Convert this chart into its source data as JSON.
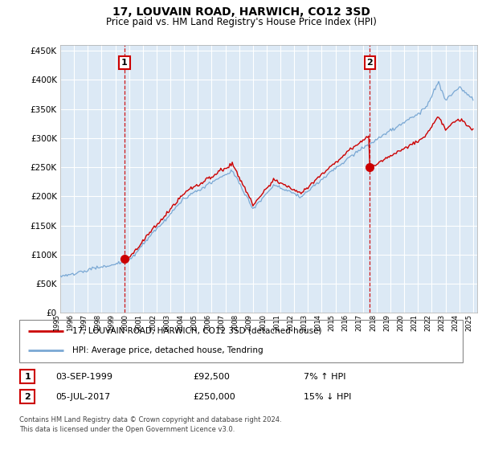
{
  "title": "17, LOUVAIN ROAD, HARWICH, CO12 3SD",
  "subtitle": "Price paid vs. HM Land Registry's House Price Index (HPI)",
  "ylabel_ticks": [
    "£0",
    "£50K",
    "£100K",
    "£150K",
    "£200K",
    "£250K",
    "£300K",
    "£350K",
    "£400K",
    "£450K"
  ],
  "ytick_values": [
    0,
    50000,
    100000,
    150000,
    200000,
    250000,
    300000,
    350000,
    400000,
    450000
  ],
  "ylim": [
    0,
    460000
  ],
  "hpi_color": "#7aa8d4",
  "price_color": "#cc0000",
  "purchase1_year": 1999.67,
  "purchase1_price": 92500,
  "purchase1_hpi_pct": "7% ↑ HPI",
  "purchase1_date": "03-SEP-1999",
  "purchase2_year": 2017.5,
  "purchase2_price": 250000,
  "purchase2_hpi_pct": "15% ↓ HPI",
  "purchase2_date": "05-JUL-2017",
  "legend_label1": "17, LOUVAIN ROAD, HARWICH, CO12 3SD (detached house)",
  "legend_label2": "HPI: Average price, detached house, Tendring",
  "footer": "Contains HM Land Registry data © Crown copyright and database right 2024.\nThis data is licensed under the Open Government Licence v3.0.",
  "bg_color": "#dce9f5",
  "grid_color": "#ffffff",
  "annotation1_label": "1",
  "annotation2_label": "2"
}
